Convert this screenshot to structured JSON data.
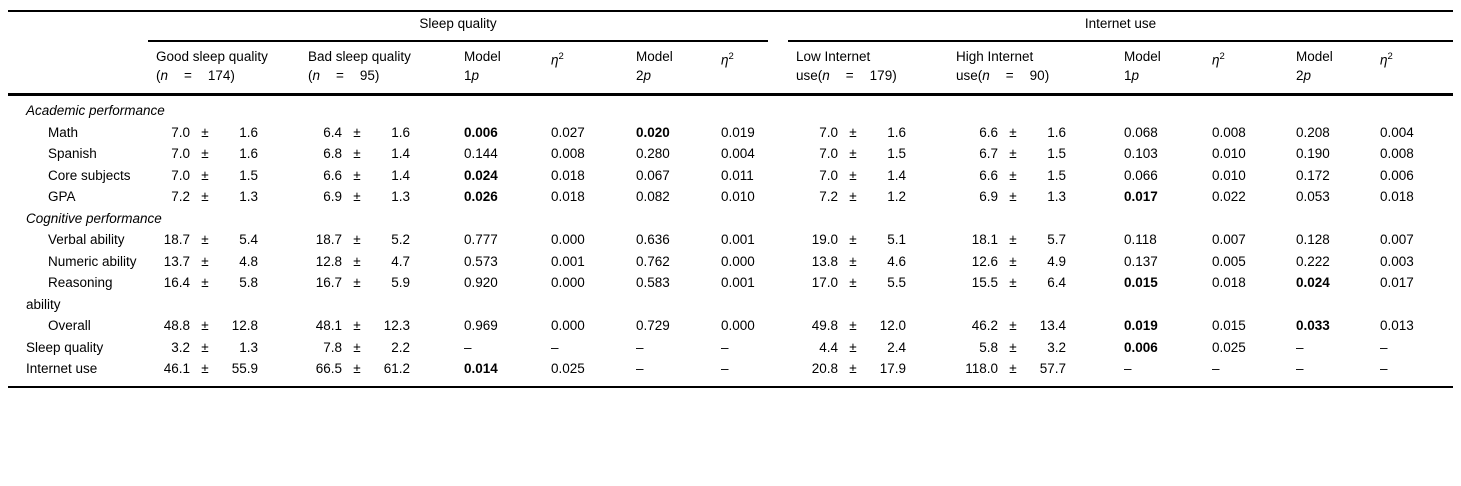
{
  "table": {
    "pm": "±",
    "eta": {
      "sym": "η",
      "sup": "2"
    },
    "groups": [
      {
        "title": "Sleep quality"
      },
      {
        "title": "Internet use"
      }
    ],
    "columns": {
      "good": {
        "line1": "Good sleep quality",
        "pre": "(",
        "n": "n",
        "eq": "=",
        "num": "174)"
      },
      "bad": {
        "line1": "Bad sleep quality",
        "pre": "(",
        "n": "n",
        "eq": "=",
        "num": "95)"
      },
      "low": {
        "line1": "Low Internet",
        "pre": "use(",
        "n": "n",
        "eq": "=",
        "num": "179)"
      },
      "high": {
        "line1": "High Internet",
        "pre": "use(",
        "n": "n",
        "eq": "=",
        "num": "90)"
      },
      "model1": {
        "line1": "Model",
        "num": "1",
        "p": "p"
      },
      "model2": {
        "line1": "Model",
        "num": "2",
        "p": "p"
      }
    },
    "rows": [
      {
        "section": "Academic performance"
      },
      {
        "label": "Math",
        "indent": true,
        "cells": [
          {
            "m": "7.0",
            "s": "1.6"
          },
          {
            "m": "6.4",
            "s": "1.6"
          },
          {
            "v": "0.006",
            "b": true
          },
          {
            "v": "0.027"
          },
          {
            "v": "0.020",
            "b": true
          },
          {
            "v": "0.019"
          },
          {
            "m": "7.0",
            "s": "1.6"
          },
          {
            "m": "6.6",
            "s": "1.6"
          },
          {
            "v": "0.068"
          },
          {
            "v": "0.008"
          },
          {
            "v": "0.208"
          },
          {
            "v": "0.004"
          }
        ]
      },
      {
        "label": "Spanish",
        "indent": true,
        "cells": [
          {
            "m": "7.0",
            "s": "1.6"
          },
          {
            "m": "6.8",
            "s": "1.4"
          },
          {
            "v": "0.144"
          },
          {
            "v": "0.008"
          },
          {
            "v": "0.280"
          },
          {
            "v": "0.004"
          },
          {
            "m": "7.0",
            "s": "1.5"
          },
          {
            "m": "6.7",
            "s": "1.5"
          },
          {
            "v": "0.103"
          },
          {
            "v": "0.010"
          },
          {
            "v": "0.190"
          },
          {
            "v": "0.008"
          }
        ]
      },
      {
        "label": "Core subjects",
        "indent": true,
        "cells": [
          {
            "m": "7.0",
            "s": "1.5"
          },
          {
            "m": "6.6",
            "s": "1.4"
          },
          {
            "v": "0.024",
            "b": true
          },
          {
            "v": "0.018"
          },
          {
            "v": "0.067"
          },
          {
            "v": "0.011"
          },
          {
            "m": "7.0",
            "s": "1.4"
          },
          {
            "m": "6.6",
            "s": "1.5"
          },
          {
            "v": "0.066"
          },
          {
            "v": "0.010"
          },
          {
            "v": "0.172"
          },
          {
            "v": "0.006"
          }
        ]
      },
      {
        "label": "GPA",
        "indent": true,
        "cells": [
          {
            "m": "7.2",
            "s": "1.3"
          },
          {
            "m": "6.9",
            "s": "1.3"
          },
          {
            "v": "0.026",
            "b": true
          },
          {
            "v": "0.018"
          },
          {
            "v": "0.082"
          },
          {
            "v": "0.010"
          },
          {
            "m": "7.2",
            "s": "1.2"
          },
          {
            "m": "6.9",
            "s": "1.3"
          },
          {
            "v": "0.017",
            "b": true
          },
          {
            "v": "0.022"
          },
          {
            "v": "0.053"
          },
          {
            "v": "0.018"
          }
        ]
      },
      {
        "section": "Cognitive performance"
      },
      {
        "label": "Verbal ability",
        "indent": true,
        "cells": [
          {
            "m": "18.7",
            "s": "5.4"
          },
          {
            "m": "18.7",
            "s": "5.2"
          },
          {
            "v": "0.777"
          },
          {
            "v": "0.000"
          },
          {
            "v": "0.636"
          },
          {
            "v": "0.001"
          },
          {
            "m": "19.0",
            "s": "5.1"
          },
          {
            "m": "18.1",
            "s": "5.7"
          },
          {
            "v": "0.118"
          },
          {
            "v": "0.007"
          },
          {
            "v": "0.128"
          },
          {
            "v": "0.007"
          }
        ]
      },
      {
        "label": "Numeric ability",
        "indent": true,
        "cells": [
          {
            "m": "13.7",
            "s": "4.8"
          },
          {
            "m": "12.8",
            "s": "4.7"
          },
          {
            "v": "0.573"
          },
          {
            "v": "0.001"
          },
          {
            "v": "0.762"
          },
          {
            "v": "0.000"
          },
          {
            "m": "13.8",
            "s": "4.6"
          },
          {
            "m": "12.6",
            "s": "4.9"
          },
          {
            "v": "0.137"
          },
          {
            "v": "0.005"
          },
          {
            "v": "0.222"
          },
          {
            "v": "0.003"
          }
        ]
      },
      {
        "label": "Reasoning ability",
        "indent": true,
        "cells": [
          {
            "m": "16.4",
            "s": "5.8"
          },
          {
            "m": "16.7",
            "s": "5.9"
          },
          {
            "v": "0.920"
          },
          {
            "v": "0.000"
          },
          {
            "v": "0.583"
          },
          {
            "v": "0.001"
          },
          {
            "m": "17.0",
            "s": "5.5"
          },
          {
            "m": "15.5",
            "s": "6.4"
          },
          {
            "v": "0.015",
            "b": true
          },
          {
            "v": "0.018"
          },
          {
            "v": "0.024",
            "b": true
          },
          {
            "v": "0.017"
          }
        ]
      },
      {
        "label": "Overall",
        "indent": true,
        "cells": [
          {
            "m": "48.8",
            "s": "12.8"
          },
          {
            "m": "48.1",
            "s": "12.3"
          },
          {
            "v": "0.969"
          },
          {
            "v": "0.000"
          },
          {
            "v": "0.729"
          },
          {
            "v": "0.000"
          },
          {
            "m": "49.8",
            "s": "12.0"
          },
          {
            "m": "46.2",
            "s": "13.4"
          },
          {
            "v": "0.019",
            "b": true
          },
          {
            "v": "0.015"
          },
          {
            "v": "0.033",
            "b": true
          },
          {
            "v": "0.013"
          }
        ]
      },
      {
        "label": "Sleep quality",
        "indent": false,
        "cells": [
          {
            "m": "3.2",
            "s": "1.3"
          },
          {
            "m": "7.8",
            "s": "2.2"
          },
          {
            "v": "–"
          },
          {
            "v": "–"
          },
          {
            "v": "–"
          },
          {
            "v": "–"
          },
          {
            "m": "4.4",
            "s": "2.4"
          },
          {
            "m": "5.8",
            "s": "3.2"
          },
          {
            "v": "0.006",
            "b": true
          },
          {
            "v": "0.025"
          },
          {
            "v": "–"
          },
          {
            "v": "–"
          }
        ]
      },
      {
        "label": "Internet use",
        "indent": false,
        "cells": [
          {
            "m": "46.1",
            "s": "55.9"
          },
          {
            "m": "66.5",
            "s": "61.2"
          },
          {
            "v": "0.014",
            "b": true
          },
          {
            "v": "0.025"
          },
          {
            "v": "–"
          },
          {
            "v": "–"
          },
          {
            "m": "20.8",
            "s": "17.9"
          },
          {
            "m": "118.0",
            "s": "57.7"
          },
          {
            "v": "–"
          },
          {
            "v": "–"
          },
          {
            "v": "–"
          },
          {
            "v": "–"
          }
        ]
      }
    ]
  }
}
